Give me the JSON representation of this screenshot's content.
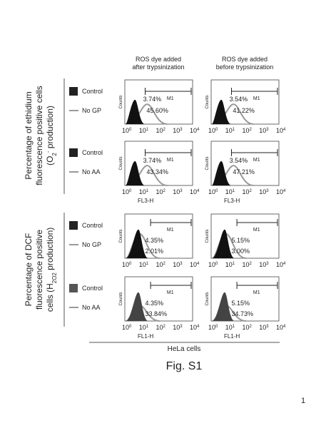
{
  "column_headers": [
    [
      "ROS dye added",
      "after trypsinization"
    ],
    [
      "ROS dye added",
      "before trypsinization"
    ]
  ],
  "row_groups": [
    {
      "lines": [
        [
          "Percentage of ethidium"
        ],
        [
          "fluorescence positive cells"
        ],
        [
          "(O",
          "2",
          "-",
          " production)"
        ]
      ]
    },
    {
      "lines": [
        [
          "Percentage of DCF"
        ],
        [
          "fluorescence positive"
        ],
        [
          "cells (H",
          "2",
          "O",
          "2",
          " production)"
        ]
      ]
    }
  ],
  "legends": [
    {
      "control": "Control",
      "treatment": "No GP"
    },
    {
      "control": "Control",
      "treatment": "No AA"
    },
    {
      "control": "Control",
      "treatment": "No GP"
    },
    {
      "control": "Control",
      "treatment": "No AA"
    }
  ],
  "panels": [
    [
      {
        "gate": "M1",
        "pct_control": "3.74%",
        "pct_treatment": "45.60%"
      },
      {
        "gate": "M1",
        "pct_control": "3.54%",
        "pct_treatment": "41.22%"
      }
    ],
    [
      {
        "gate": "M1",
        "pct_control": "3.74%",
        "pct_treatment": "43.34%"
      },
      {
        "gate": "M1",
        "pct_control": "3.54%",
        "pct_treatment": "47.21%"
      }
    ],
    [
      {
        "gate": "M1",
        "pct_control": "4.35%",
        "pct_treatment": "2.01%"
      },
      {
        "gate": "M1",
        "pct_control": "5.15%",
        "pct_treatment": "3.00%"
      }
    ],
    [
      {
        "gate": "M1",
        "pct_control": "4.35%",
        "pct_treatment": "33.84%"
      },
      {
        "gate": "M1",
        "pct_control": "5.15%",
        "pct_treatment": "34.73%"
      }
    ]
  ],
  "y_axis_label": "Counts",
  "x_axis_labels": [
    "FL3-H",
    "FL1-H"
  ],
  "tick_base": "10",
  "tick_exponents": [
    "0",
    "1",
    "2",
    "3",
    "4"
  ],
  "cell_line": "HeLa cells",
  "figure_label": "Fig. S1",
  "page_number": "1"
}
